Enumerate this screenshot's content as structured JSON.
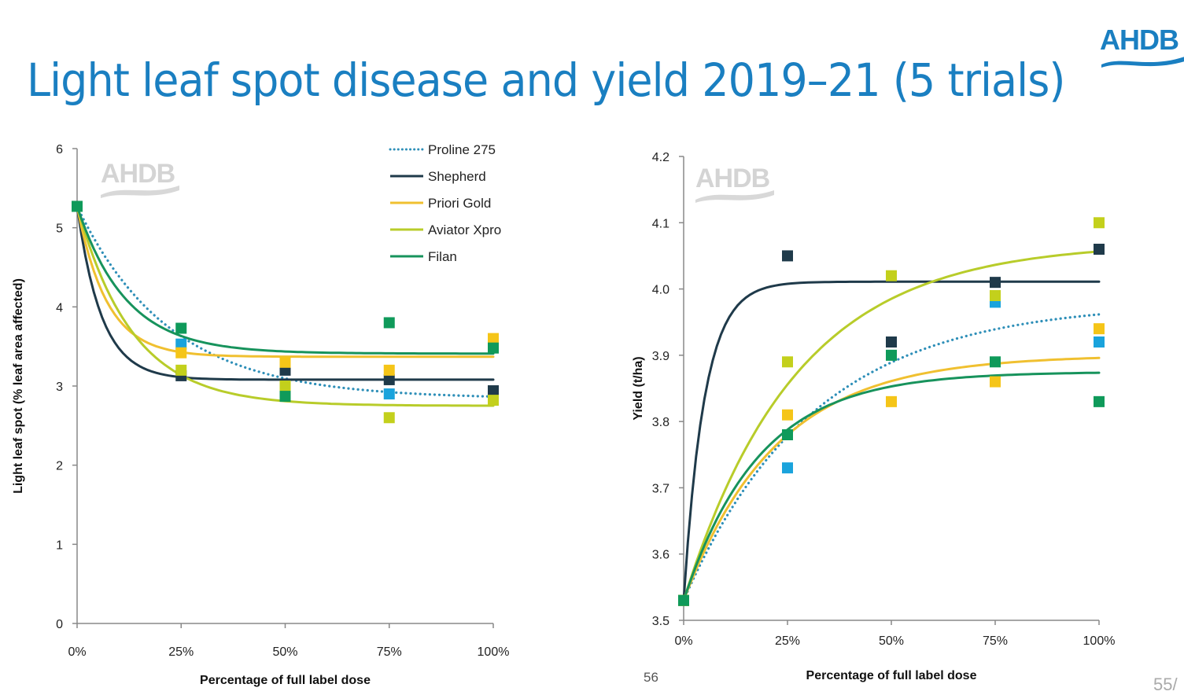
{
  "slide": {
    "title": "Light leaf spot disease and yield 2019–21 (5 trials)",
    "logo_text": "AHDB",
    "watermark_text": "AHDB",
    "page_number": "56",
    "page_counter": "55/",
    "title_color": "#1a7fc1"
  },
  "series_styles": [
    {
      "name": "Proline 275",
      "color": "#1aa3dc",
      "line_color": "#2e8fb8",
      "dash": "dotted"
    },
    {
      "name": "Shepherd",
      "color": "#1f3a4a",
      "line_color": "#1f3a4a",
      "dash": "solid"
    },
    {
      "name": "Priori Gold",
      "color": "#f5c518",
      "line_color": "#f0c030",
      "dash": "solid"
    },
    {
      "name": "Aviator Xpro",
      "color": "#c3d01c",
      "line_color": "#b8cc2a",
      "dash": "solid"
    },
    {
      "name": "Filan",
      "color": "#0f9a5a",
      "line_color": "#17935c",
      "dash": "solid"
    }
  ],
  "chart_data": [
    {
      "type": "scatter",
      "title": "",
      "xlabel": "Percentage of full label dose",
      "ylabel": "Light leaf spot (% leaf area affected)",
      "x": [
        0,
        25,
        50,
        75,
        100
      ],
      "x_tick_labels": [
        "0%",
        "25%",
        "50%",
        "75%",
        "100%"
      ],
      "xlim": [
        0,
        100
      ],
      "ylim": [
        0,
        6
      ],
      "y_ticks": [
        0,
        1,
        2,
        3,
        4,
        5,
        6
      ],
      "y_tick_labels": [
        "0",
        "1",
        "2",
        "3",
        "4",
        "5",
        "6"
      ],
      "grid": false,
      "legend": "top-right",
      "series": [
        {
          "name": "Proline 275",
          "values": [
            5.27,
            3.53,
            3.0,
            2.9,
            2.85
          ],
          "fit": {
            "start": 5.27,
            "asymptote": 2.84,
            "rate": 0.045
          }
        },
        {
          "name": "Shepherd",
          "values": [
            5.27,
            3.13,
            3.2,
            3.08,
            2.94
          ],
          "fit": {
            "start": 5.27,
            "asymptote": 3.08,
            "rate": 0.17
          }
        },
        {
          "name": "Priori Gold",
          "values": [
            5.27,
            3.42,
            3.3,
            3.2,
            3.6
          ],
          "fit": {
            "start": 5.27,
            "asymptote": 3.37,
            "rate": 0.14
          }
        },
        {
          "name": "Aviator Xpro",
          "values": [
            5.27,
            3.2,
            3.0,
            2.6,
            2.82
          ],
          "fit": {
            "start": 5.27,
            "asymptote": 2.75,
            "rate": 0.075
          }
        },
        {
          "name": "Filan",
          "values": [
            5.27,
            3.73,
            2.87,
            3.8,
            3.48
          ],
          "fit": {
            "start": 5.27,
            "asymptote": 3.41,
            "rate": 0.085
          }
        }
      ]
    },
    {
      "type": "scatter",
      "title": "",
      "xlabel": "Percentage of full label dose",
      "ylabel": "Yield (t/ha)",
      "x": [
        0,
        25,
        50,
        75,
        100
      ],
      "x_tick_labels": [
        "0%",
        "25%",
        "50%",
        "75%",
        "100%"
      ],
      "xlim": [
        0,
        100
      ],
      "ylim": [
        3.5,
        4.2
      ],
      "y_ticks": [
        3.5,
        3.6,
        3.7,
        3.8,
        3.9,
        4.0,
        4.1,
        4.2
      ],
      "y_tick_labels": [
        "3.5",
        "3.6",
        "3.7",
        "3.8",
        "3.9",
        "4.0",
        "4.1",
        "4.2"
      ],
      "grid": false,
      "legend": "none",
      "series": [
        {
          "name": "Proline 275",
          "values": [
            3.53,
            3.73,
            null,
            3.98,
            3.92
          ],
          "fit": {
            "start": 3.53,
            "asymptote": 3.98,
            "rate": 0.032
          }
        },
        {
          "name": "Shepherd",
          "values": [
            3.53,
            4.05,
            3.92,
            4.01,
            4.06
          ],
          "fit": {
            "start": 3.53,
            "asymptote": 4.011,
            "rate": 0.2
          }
        },
        {
          "name": "Priori Gold",
          "values": [
            3.53,
            3.81,
            3.83,
            3.86,
            3.94
          ],
          "fit": {
            "start": 3.53,
            "asymptote": 3.9,
            "rate": 0.045
          }
        },
        {
          "name": "Aviator Xpro",
          "values": [
            3.53,
            3.89,
            4.02,
            3.99,
            4.1
          ],
          "fit": {
            "start": 3.53,
            "asymptote": 4.07,
            "rate": 0.037
          }
        },
        {
          "name": "Filan",
          "values": [
            3.53,
            3.78,
            3.9,
            3.89,
            3.83
          ],
          "fit": {
            "start": 3.53,
            "asymptote": 3.875,
            "rate": 0.055
          }
        }
      ]
    }
  ]
}
